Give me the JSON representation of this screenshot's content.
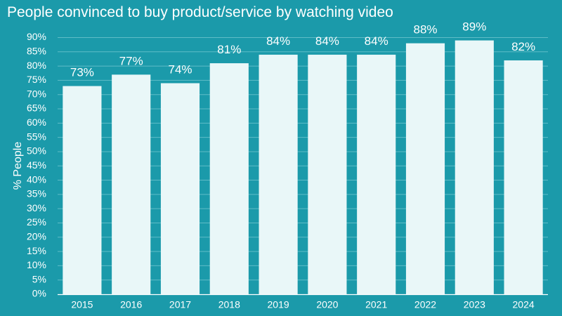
{
  "chart_data": {
    "type": "bar",
    "title": "People convinced to buy product/service by watching video",
    "xlabel": "",
    "ylabel": "% People",
    "categories": [
      "2015",
      "2016",
      "2017",
      "2018",
      "2019",
      "2020",
      "2021",
      "2022",
      "2023",
      "2024"
    ],
    "values": [
      73,
      77,
      74,
      81,
      84,
      84,
      84,
      88,
      89,
      82
    ],
    "data_labels": [
      "73%",
      "77%",
      "74%",
      "81%",
      "84%",
      "84%",
      "84%",
      "88%",
      "89%",
      "82%"
    ],
    "ylim": [
      0,
      90
    ],
    "yticks": [
      0,
      5,
      10,
      15,
      20,
      25,
      30,
      35,
      40,
      45,
      50,
      55,
      60,
      65,
      70,
      75,
      80,
      85,
      90
    ],
    "ytick_labels": [
      "0%",
      "5%",
      "10%",
      "15%",
      "20%",
      "25%",
      "30%",
      "35%",
      "40%",
      "45%",
      "50%",
      "55%",
      "60%",
      "65%",
      "70%",
      "75%",
      "80%",
      "85%",
      "90%"
    ],
    "grid": true,
    "legend": "none"
  },
  "colors": {
    "background": "#1b9aaa",
    "bar": "#e9f7f8",
    "grid": "#5fbcc7",
    "axis": "#ffffff",
    "text": "#ffffff"
  }
}
